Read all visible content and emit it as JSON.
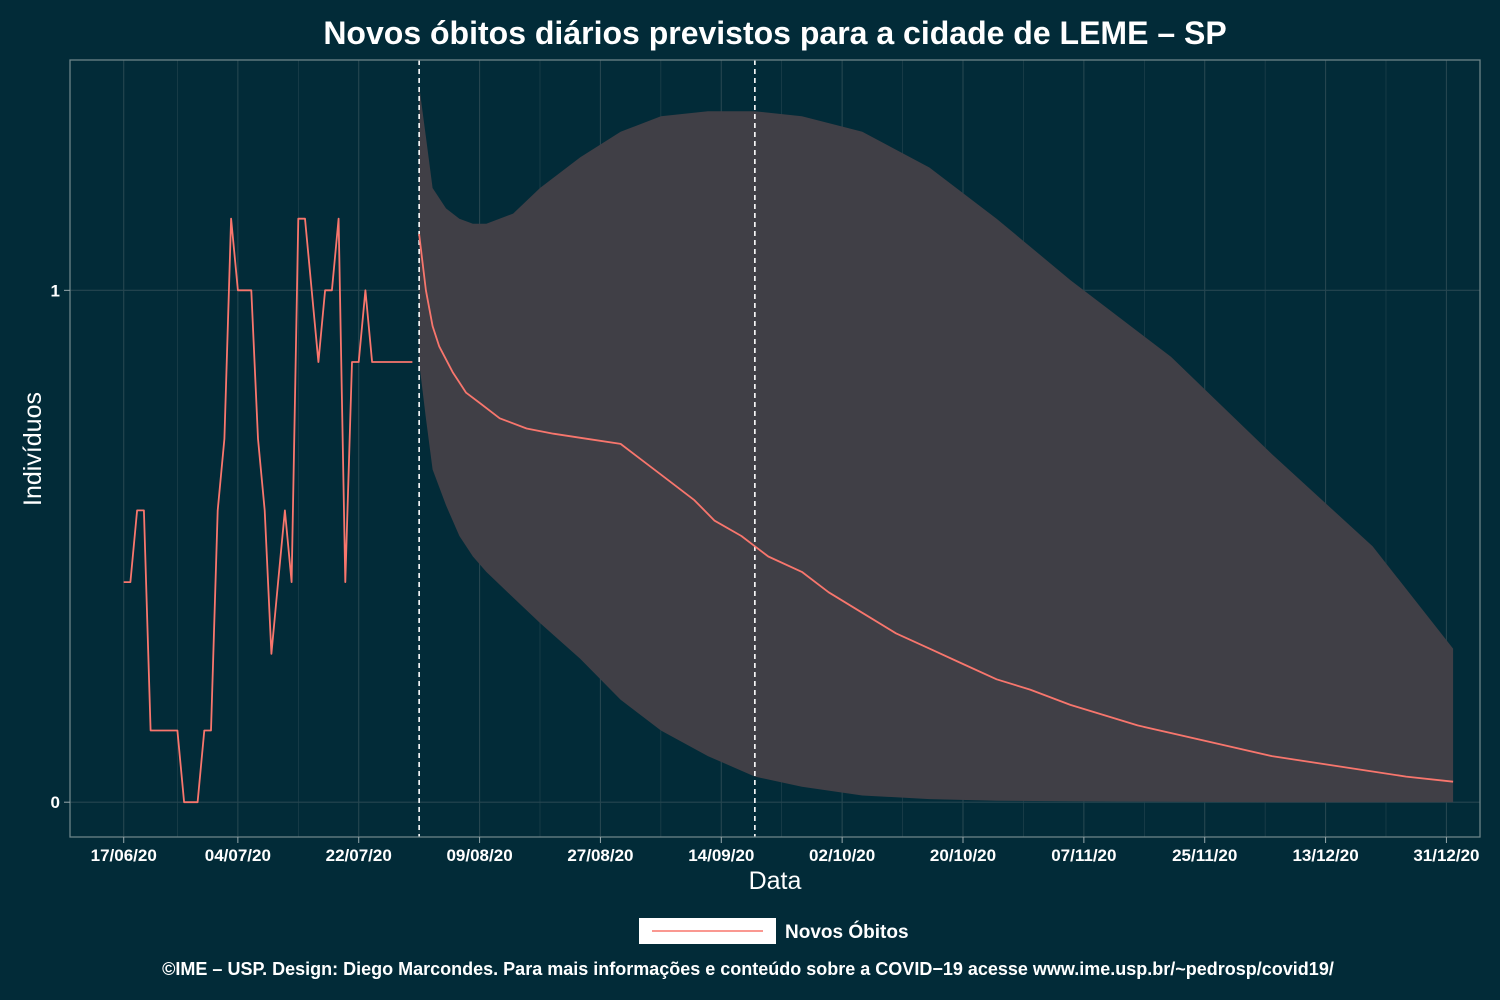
{
  "chart_data": {
    "type": "line",
    "title": "Novos óbitos diários previstos para a cidade de LEME – SP",
    "xlabel": "Data",
    "ylabel": "Indivíduos",
    "x_tick_labels": [
      "17/06/20",
      "04/07/20",
      "22/07/20",
      "09/08/20",
      "27/08/20",
      "14/09/20",
      "02/10/20",
      "20/10/20",
      "07/11/20",
      "25/11/20",
      "13/12/20",
      "31/12/20"
    ],
    "y_ticks": [
      0,
      1
    ],
    "ylim": [
      -0.068,
      1.45
    ],
    "x_range": [
      "2020-06-09",
      "2021-01-05"
    ],
    "grid": true,
    "legend_position": "bottom",
    "vertical_lines": [
      "2020-07-31",
      "2020-09-19"
    ],
    "series": [
      {
        "name": "Novos Óbitos",
        "color": "#f8766d",
        "observed": {
          "x": [
            "2020-06-17",
            "2020-06-18",
            "2020-06-19",
            "2020-06-20",
            "2020-06-21",
            "2020-06-22",
            "2020-06-23",
            "2020-06-24",
            "2020-06-25",
            "2020-06-26",
            "2020-06-27",
            "2020-06-28",
            "2020-06-29",
            "2020-06-30",
            "2020-07-01",
            "2020-07-02",
            "2020-07-03",
            "2020-07-04",
            "2020-07-05",
            "2020-07-06",
            "2020-07-07",
            "2020-07-08",
            "2020-07-09",
            "2020-07-10",
            "2020-07-11",
            "2020-07-12",
            "2020-07-13",
            "2020-07-14",
            "2020-07-15",
            "2020-07-16",
            "2020-07-17",
            "2020-07-18",
            "2020-07-19",
            "2020-07-20",
            "2020-07-21",
            "2020-07-22",
            "2020-07-23",
            "2020-07-24",
            "2020-07-25",
            "2020-07-26",
            "2020-07-27",
            "2020-07-28",
            "2020-07-29",
            "2020-07-30"
          ],
          "y": [
            0.43,
            0.43,
            0.57,
            0.57,
            0.14,
            0.14,
            0.14,
            0.14,
            0.14,
            0,
            0,
            0,
            0.14,
            0.14,
            0.57,
            0.71,
            1.14,
            1,
            1,
            1,
            0.71,
            0.57,
            0.29,
            0.43,
            0.57,
            0.43,
            1.14,
            1.14,
            1,
            0.86,
            1,
            1,
            1.14,
            0.43,
            0.86,
            0.86,
            1,
            0.86,
            0.86,
            0.86,
            0.86,
            0.86,
            0.86,
            0.86
          ]
        },
        "predicted": {
          "x": [
            "2020-07-31",
            "2020-08-01",
            "2020-08-02",
            "2020-08-03",
            "2020-08-05",
            "2020-08-07",
            "2020-08-09",
            "2020-08-12",
            "2020-08-16",
            "2020-08-20",
            "2020-08-25",
            "2020-08-30",
            "2020-09-02",
            "2020-09-06",
            "2020-09-10",
            "2020-09-13",
            "2020-09-17",
            "2020-09-19",
            "2020-09-21",
            "2020-09-26",
            "2020-09-30",
            "2020-10-05",
            "2020-10-10",
            "2020-10-15",
            "2020-10-20",
            "2020-10-25",
            "2020-10-30",
            "2020-11-05",
            "2020-11-15",
            "2020-11-25",
            "2020-12-05",
            "2020-12-15",
            "2020-12-25",
            "2021-01-01"
          ],
          "y": [
            1.11,
            1.0,
            0.93,
            0.89,
            0.84,
            0.8,
            0.78,
            0.75,
            0.73,
            0.72,
            0.71,
            0.7,
            0.67,
            0.63,
            0.59,
            0.55,
            0.52,
            0.5,
            0.48,
            0.45,
            0.41,
            0.37,
            0.33,
            0.3,
            0.27,
            0.24,
            0.22,
            0.19,
            0.15,
            0.12,
            0.09,
            0.07,
            0.05,
            0.04
          ]
        },
        "interval": {
          "x": [
            "2020-07-31",
            "2020-08-01",
            "2020-08-02",
            "2020-08-04",
            "2020-08-06",
            "2020-08-08",
            "2020-08-10",
            "2020-08-14",
            "2020-08-18",
            "2020-08-24",
            "2020-08-30",
            "2020-09-05",
            "2020-09-12",
            "2020-09-19",
            "2020-09-26",
            "2020-10-05",
            "2020-10-15",
            "2020-10-25",
            "2020-11-05",
            "2020-11-20",
            "2020-12-05",
            "2020-12-20",
            "2021-01-01"
          ],
          "lower": [
            0.86,
            0.75,
            0.65,
            0.58,
            0.52,
            0.48,
            0.45,
            0.4,
            0.35,
            0.28,
            0.2,
            0.14,
            0.09,
            0.05,
            0.03,
            0.013,
            0.006,
            0.003,
            0.002,
            0.001,
            0,
            0,
            0
          ],
          "upper": [
            1.4,
            1.3,
            1.2,
            1.16,
            1.14,
            1.13,
            1.13,
            1.15,
            1.2,
            1.26,
            1.31,
            1.34,
            1.35,
            1.35,
            1.34,
            1.31,
            1.24,
            1.14,
            1.02,
            0.87,
            0.68,
            0.5,
            0.3
          ]
        }
      }
    ]
  },
  "legend": {
    "label": "Novos Óbitos"
  },
  "caption": "©IME – USP. Design: Diego Marcondes. Para mais informações e conteúdo sobre a COVID−19 acesse www.ime.usp.br/~pedrosp/covid19/",
  "colors": {
    "background": "#022b38",
    "band": "#403f46",
    "line": "#f8766d",
    "grid": "#264650",
    "frame": "#6b8387",
    "text": "#ffffff"
  }
}
